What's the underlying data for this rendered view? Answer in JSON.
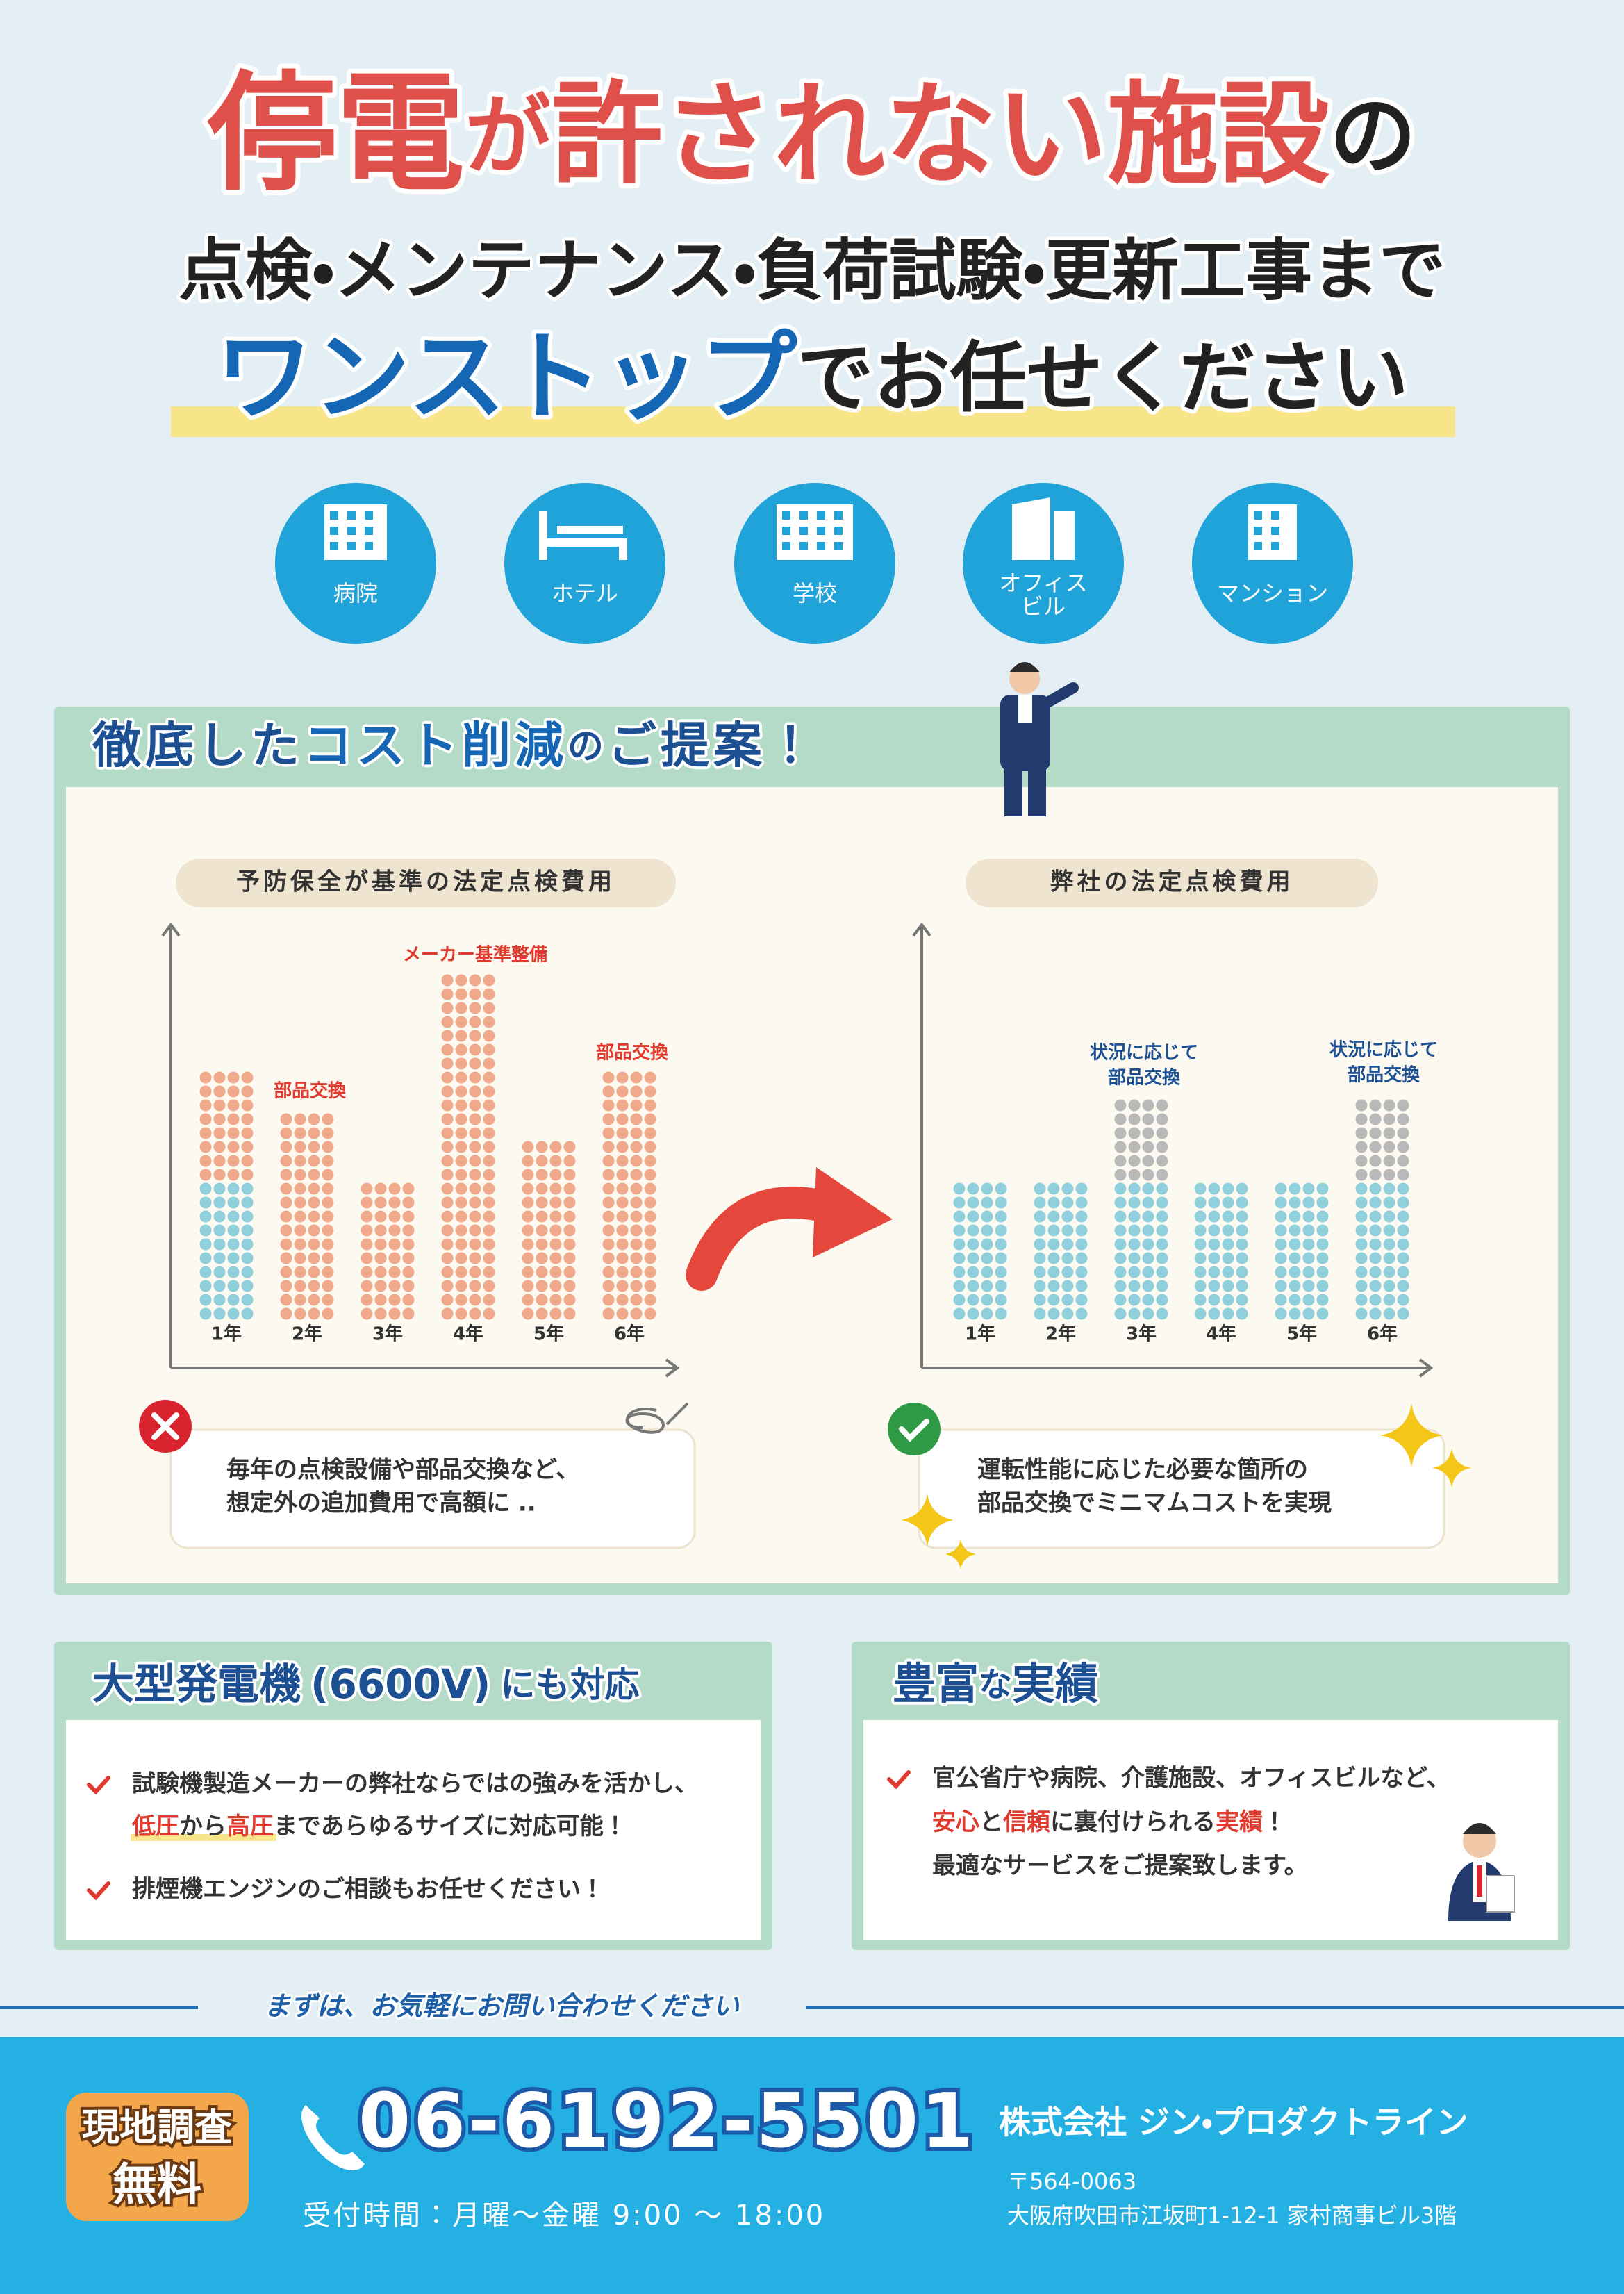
{
  "header": {
    "line1": [
      "停電",
      "が",
      "許されない施設",
      "の"
    ],
    "line2": "点検・メンテナンス・負荷試験・更新工事まで",
    "line3": [
      "ワンストップ",
      "でお任せください"
    ]
  },
  "facilities": [
    [
      "病院"
    ],
    [
      "ホテル"
    ],
    [
      "学校"
    ],
    [
      "オフィス",
      "ビル"
    ],
    [
      "マンション"
    ]
  ],
  "cost": {
    "title": [
      "徹底した",
      "コスト削減",
      "の",
      "ご提案！"
    ],
    "before": {
      "label": "予防保全が基準の法定点検費用",
      "years": [
        "1年",
        "2年",
        "3年",
        "4年",
        "5年",
        "6年"
      ],
      "notes": [
        "部品交換",
        "メーカー基準整備",
        "部品交換"
      ],
      "comment": [
        "毎年の点検設備や部品交換など、",
        "想定外の追加費用で高額に .."
      ]
    },
    "after": {
      "label": "弊社の法定点検費用",
      "years": [
        "1年",
        "2年",
        "3年",
        "4年",
        "5年",
        "6年"
      ],
      "notes": [
        [
          "状況に応じて",
          "部品交換"
        ],
        [
          "状況に応じて",
          "部品交換"
        ]
      ],
      "comment": [
        "運転性能に応じた必要な箇所の",
        "部品交換でミニマムコストを実現"
      ]
    }
  },
  "generator": {
    "title": [
      "大型発電機",
      "(6600V)",
      "にも対応"
    ],
    "lines": [
      [
        "試験機製造メーカーの弊社ならではの強みを活かし、"
      ],
      [
        "低圧",
        "から",
        "高圧",
        "まであらゆるサイズに対応可能！"
      ],
      [
        "排煙機エンジンのご相談もお任せください！"
      ]
    ]
  },
  "record": {
    "title": [
      "豊富",
      "な",
      "実績"
    ],
    "lines": [
      [
        "官公省庁や病院、介護施設、オフィスビルなど、"
      ],
      [
        "安心",
        "と",
        "信頼",
        "に裏付けられる",
        "実績",
        "！"
      ],
      [
        "最適なサービスをご提案致します。"
      ]
    ]
  },
  "contact": {
    "invite": "まずは、お気軽にお問い合わせください",
    "badge": [
      "現地調査",
      "無料"
    ],
    "phone": "06-6192-5501",
    "hours": "受付時間：月曜～金曜 9:00 ～ 18:00",
    "company": "株式会社 ジン・プロダクトライン",
    "postal": "〒564-0063",
    "address": "大阪府吹田市江坂町1-12-1 家村商事ビル3階"
  }
}
